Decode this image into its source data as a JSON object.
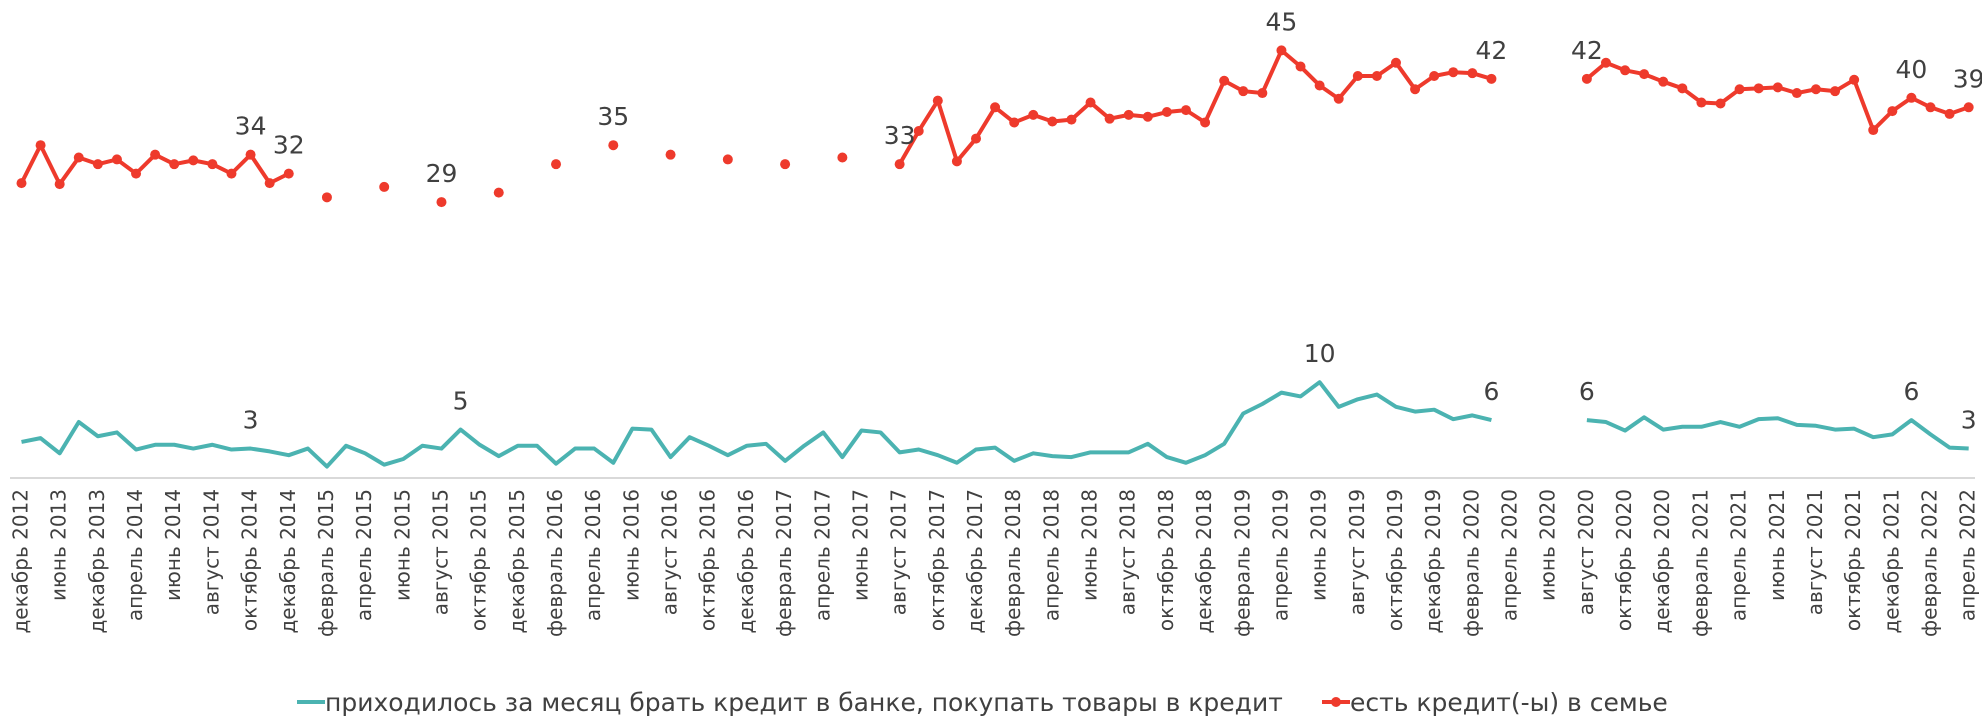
{
  "chart_data": {
    "type": "line",
    "categories": [
      "декабрь 2012",
      null,
      "июнь 2013",
      null,
      "декабрь 2013",
      null,
      "апрель 2014",
      null,
      "июнь 2014",
      null,
      "август 2014",
      null,
      "октябрь 2014",
      null,
      "декабрь 2014",
      null,
      "февраль 2015",
      null,
      "апрель 2015",
      null,
      "июнь 2015",
      null,
      "август 2015",
      null,
      "октябрь 2015",
      null,
      "декабрь 2015",
      null,
      "февраль 2016",
      null,
      "апрель 2016",
      null,
      "июнь 2016",
      null,
      "август 2016",
      null,
      "октябрь 2016",
      null,
      "декабрь 2016",
      null,
      "февраль 2017",
      null,
      "апрель 2017",
      null,
      "июнь 2017",
      null,
      "август 2017",
      null,
      "октябрь 2017",
      null,
      "декабрь 2017",
      null,
      "февраль 2018",
      null,
      "апрель 2018",
      null,
      "июнь 2018",
      null,
      "август 2018",
      null,
      "октябрь 2018",
      null,
      "декабрь 2018",
      null,
      "февраль 2019",
      null,
      "апрель 2019",
      null,
      "июнь 2019",
      null,
      "август 2019",
      null,
      "октябрь 2019",
      null,
      "декабрь 2019",
      null,
      "февраль 2020",
      null,
      "апрель 2020",
      null,
      "июнь 2020",
      null,
      "август 2020",
      null,
      "октябрь 2020",
      null,
      "декабрь 2020",
      null,
      "февраль 2021",
      null,
      "апрель 2021",
      null,
      "июнь 2021",
      null,
      "август 2021",
      null,
      "октябрь 2021",
      null,
      "декабрь 2021",
      null,
      "февраль 2022",
      null,
      "апрель 2022"
    ],
    "series": [
      {
        "name": "приходилось за месяц брать кредит в банке, покупать товары в кредит",
        "color": "#4bb3b1",
        "markers": false,
        "values": [
          3.7,
          4.1,
          2.5,
          5.8,
          4.3,
          4.7,
          2.9,
          3.4,
          3.4,
          3.0,
          3.4,
          2.9,
          3,
          2.7,
          2.3,
          3.0,
          1.1,
          3.3,
          2.5,
          1.3,
          1.9,
          3.3,
          3.0,
          5,
          3.4,
          2.2,
          3.3,
          3.3,
          1.4,
          3.0,
          3.0,
          1.5,
          5.1,
          5.0,
          2.1,
          4.2,
          3.3,
          2.3,
          3.3,
          3.5,
          1.7,
          3.3,
          4.7,
          2.1,
          4.9,
          4.7,
          2.6,
          2.9,
          2.3,
          1.5,
          2.9,
          3.1,
          1.7,
          2.5,
          2.2,
          2.1,
          2.6,
          2.6,
          2.6,
          3.5,
          2.1,
          1.5,
          2.3,
          3.5,
          6.7,
          7.7,
          8.9,
          8.5,
          10,
          7.4,
          8.2,
          8.7,
          7.4,
          6.9,
          7.1,
          6.1,
          6.5,
          6,
          null,
          null,
          null,
          null,
          6,
          5.8,
          4.9,
          6.3,
          5.0,
          5.3,
          5.3,
          5.8,
          5.3,
          6.1,
          6.2,
          5.5,
          5.4,
          5.0,
          5.1,
          4.2,
          4.5,
          6,
          4.5,
          3.1,
          3
        ],
        "value_labels": [
          null,
          null,
          null,
          null,
          null,
          null,
          null,
          null,
          null,
          null,
          null,
          null,
          "3",
          null,
          null,
          null,
          null,
          null,
          null,
          null,
          null,
          null,
          null,
          "5",
          null,
          null,
          null,
          null,
          null,
          null,
          null,
          null,
          null,
          null,
          null,
          null,
          null,
          null,
          null,
          null,
          null,
          null,
          null,
          null,
          null,
          null,
          null,
          null,
          null,
          null,
          null,
          null,
          null,
          null,
          null,
          null,
          null,
          null,
          null,
          null,
          null,
          null,
          null,
          null,
          null,
          null,
          null,
          null,
          "10",
          null,
          null,
          null,
          null,
          null,
          null,
          null,
          null,
          "6",
          null,
          null,
          null,
          null,
          "6",
          null,
          null,
          null,
          null,
          null,
          null,
          null,
          null,
          null,
          null,
          null,
          null,
          null,
          null,
          null,
          null,
          "6",
          null,
          null,
          "3"
        ]
      },
      {
        "name": "есть кредит(-ы) в семье",
        "color": "#ee3a2c",
        "markers": true,
        "values": [
          31,
          35,
          30.9,
          33.7,
          33,
          33.5,
          32,
          34,
          33,
          33.4,
          33,
          32,
          34,
          31,
          32,
          null,
          29.5,
          null,
          null,
          30.6,
          null,
          null,
          29,
          null,
          null,
          30,
          null,
          null,
          33,
          null,
          null,
          35,
          null,
          null,
          34,
          null,
          null,
          33.5,
          null,
          null,
          33,
          null,
          null,
          33.7,
          null,
          null,
          33,
          36.5,
          39.7,
          33.3,
          35.7,
          39,
          37.4,
          38.2,
          37.5,
          37.7,
          39.5,
          37.8,
          38.2,
          38,
          38.5,
          38.7,
          37.4,
          41.8,
          40.7,
          40.5,
          45,
          43.3,
          41.3,
          39.9,
          42.3,
          42.3,
          43.7,
          40.9,
          42.3,
          42.7,
          42.6,
          42,
          null,
          null,
          null,
          null,
          42,
          43.7,
          42.9,
          42.5,
          41.7,
          41,
          39.5,
          39.4,
          40.9,
          41,
          41.1,
          40.5,
          40.9,
          40.7,
          41.9,
          36.6,
          38.6,
          40,
          39,
          38.3,
          39
        ],
        "value_labels": [
          null,
          null,
          null,
          null,
          null,
          null,
          null,
          null,
          null,
          null,
          null,
          null,
          "34",
          null,
          "32",
          null,
          null,
          null,
          null,
          null,
          null,
          null,
          "29",
          null,
          null,
          null,
          null,
          null,
          null,
          null,
          null,
          "35",
          null,
          null,
          null,
          null,
          null,
          null,
          null,
          null,
          null,
          null,
          null,
          null,
          null,
          null,
          "33",
          null,
          null,
          null,
          null,
          null,
          null,
          null,
          null,
          null,
          null,
          null,
          null,
          null,
          null,
          null,
          null,
          null,
          null,
          null,
          "45",
          null,
          null,
          null,
          null,
          null,
          null,
          null,
          null,
          null,
          null,
          "42",
          null,
          null,
          null,
          null,
          "42",
          null,
          null,
          null,
          null,
          null,
          null,
          null,
          null,
          null,
          null,
          null,
          null,
          null,
          null,
          null,
          null,
          "40",
          null,
          null,
          "39"
        ]
      }
    ],
    "ylim": [
      0,
      50
    ],
    "legend": "bottom"
  }
}
